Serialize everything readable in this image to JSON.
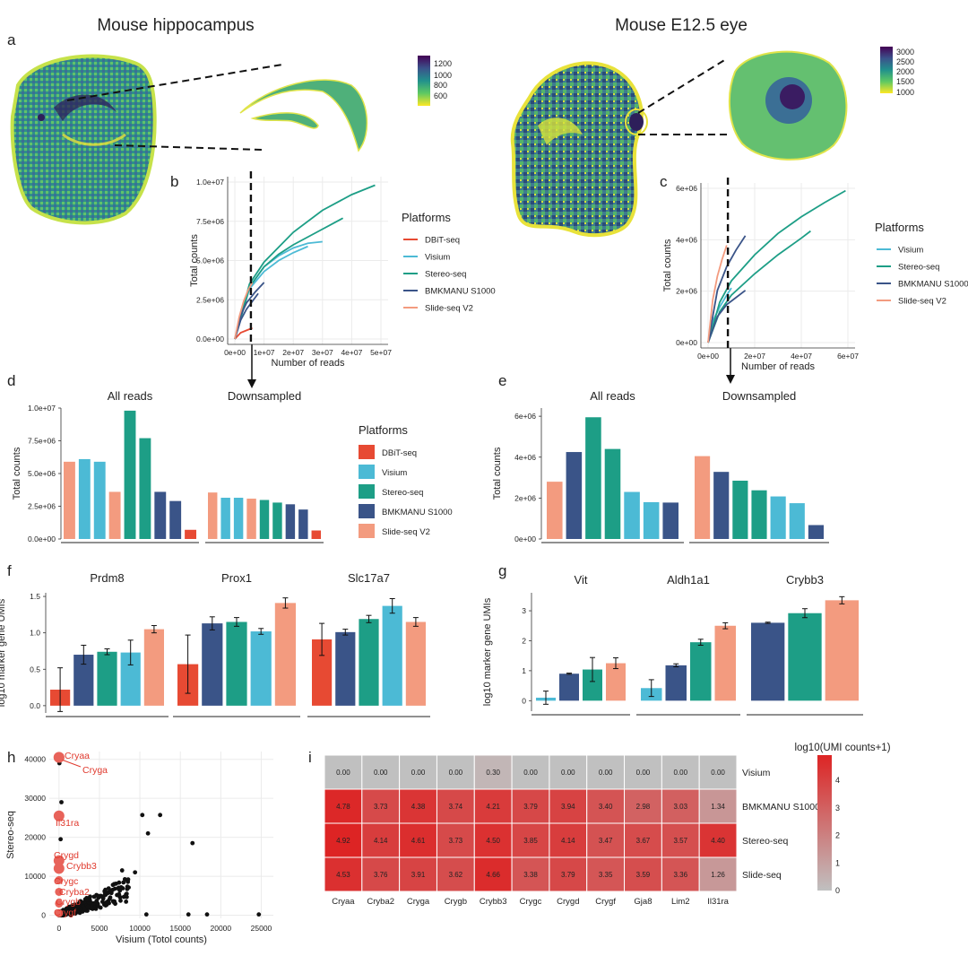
{
  "panel_letters": {
    "a": "a",
    "b": "b",
    "c": "c",
    "d": "d",
    "e": "e",
    "f": "f",
    "g": "g",
    "h": "h",
    "i": "i"
  },
  "section_titles": {
    "hippocampus": "Mouse hippocampus",
    "eye": "Mouse E12.5 eye"
  },
  "colors": {
    "DBiT-seq": "#e74a33",
    "Visium": "#4cbad5",
    "Stereo-seq": "#1d9e86",
    "BMKMANU S1000": "#3a5488",
    "Slide-seq V2": "#f39b7f",
    "grid": "#ebebeb"
  },
  "colorbars": {
    "hippocampus": {
      "ticks": [
        "1200",
        "1000",
        "800",
        "600"
      ]
    },
    "eye": {
      "ticks": [
        "3000",
        "2500",
        "2000",
        "1500",
        "1000"
      ]
    }
  },
  "chart_data": [
    {
      "id": "b",
      "type": "line",
      "xlabel": "Number of reads",
      "ylabel": "Total counts",
      "xlim": [
        0,
        50000000
      ],
      "ylim": [
        0,
        10000000
      ],
      "xticks": [
        "0e+00",
        "1e+07",
        "2e+07",
        "3e+07",
        "4e+07",
        "5e+07"
      ],
      "yticks": [
        "0.0e+00",
        "2.5e+06",
        "5.0e+06",
        "7.5e+06",
        "1.0e+07"
      ],
      "legend_title": "Platforms",
      "legend": [
        "DBiT-seq",
        "Visium",
        "Stereo-seq",
        "BMKMANU S1000",
        "Slide-seq V2"
      ],
      "vline": 5500000,
      "series": [
        {
          "platform": "DBiT-seq",
          "x": [
            0,
            2000000,
            4000000,
            6000000
          ],
          "y": [
            0,
            400000,
            550000,
            700000
          ]
        },
        {
          "platform": "Visium",
          "x": [
            0,
            5000000,
            10000000,
            15000000,
            20000000,
            25000000,
            30000000
          ],
          "y": [
            0,
            3300000,
            4600000,
            5300000,
            5800000,
            6100000,
            6200000
          ]
        },
        {
          "platform": "Visium",
          "x": [
            0,
            5000000,
            10000000,
            15000000,
            20000000,
            25000000
          ],
          "y": [
            0,
            3200000,
            4300000,
            5000000,
            5500000,
            5900000
          ]
        },
        {
          "platform": "Stereo-seq",
          "x": [
            0,
            5000000,
            10000000,
            20000000,
            30000000,
            40000000,
            48000000
          ],
          "y": [
            0,
            3500000,
            4900000,
            6800000,
            8200000,
            9200000,
            9800000
          ]
        },
        {
          "platform": "Stereo-seq",
          "x": [
            0,
            5000000,
            10000000,
            15000000,
            20000000,
            30000000,
            37000000
          ],
          "y": [
            0,
            3300000,
            4600000,
            5400000,
            6000000,
            7000000,
            7700000
          ]
        },
        {
          "platform": "BMKMANU S1000",
          "x": [
            0,
            2000000,
            4000000,
            7000000,
            10000000
          ],
          "y": [
            0,
            1500000,
            2300000,
            3000000,
            3600000
          ]
        },
        {
          "platform": "BMKMANU S1000",
          "x": [
            0,
            2000000,
            4000000,
            6000000,
            8000000
          ],
          "y": [
            0,
            1200000,
            1900000,
            2400000,
            2900000
          ]
        },
        {
          "platform": "Slide-seq V2",
          "x": [
            0,
            1500000,
            3000000,
            4500000,
            6000000
          ],
          "y": [
            0,
            1400000,
            2400000,
            3100000,
            3600000
          ]
        }
      ]
    },
    {
      "id": "c",
      "type": "line",
      "xlabel": "Number of reads",
      "ylabel": "Total counts",
      "xlim": [
        0,
        60000000
      ],
      "ylim": [
        0,
        6500000
      ],
      "xticks": [
        "0e+00",
        "2e+07",
        "4e+07",
        "6e+07"
      ],
      "yticks": [
        "0e+00",
        "2e+06",
        "4e+06",
        "6e+06"
      ],
      "legend_title": "Platforms",
      "legend": [
        "Visium",
        "Stereo-seq",
        "BMKMANU S1000",
        "Slide-seq V2"
      ],
      "vline": 8500000,
      "series": [
        {
          "platform": "Visium",
          "x": [
            0,
            2000000,
            5000000,
            8000000,
            10000000
          ],
          "y": [
            0,
            900000,
            1500000,
            2000000,
            2300000
          ]
        },
        {
          "platform": "Stereo-seq",
          "x": [
            0,
            5000000,
            10000000,
            20000000,
            30000000,
            40000000,
            50000000,
            59000000
          ],
          "y": [
            0,
            1700000,
            2600000,
            3700000,
            4600000,
            5300000,
            5900000,
            6400000
          ]
        },
        {
          "platform": "Stereo-seq",
          "x": [
            0,
            5000000,
            10000000,
            20000000,
            30000000,
            40000000,
            44000000
          ],
          "y": [
            0,
            1300000,
            2000000,
            2900000,
            3700000,
            4400000,
            4700000
          ]
        },
        {
          "platform": "BMKMANU S1000",
          "x": [
            0,
            4000000,
            8000000,
            12000000,
            16000000
          ],
          "y": [
            0,
            2200000,
            3200000,
            3900000,
            4500000
          ]
        },
        {
          "platform": "BMKMANU S1000",
          "x": [
            0,
            4000000,
            8000000,
            12000000,
            16000000
          ],
          "y": [
            0,
            1100000,
            1600000,
            1900000,
            2200000
          ]
        },
        {
          "platform": "Slide-seq V2",
          "x": [
            0,
            2000000,
            4000000,
            6000000,
            8000000
          ],
          "y": [
            0,
            1800000,
            2800000,
            3500000,
            4100000
          ]
        }
      ]
    },
    {
      "id": "d",
      "type": "bar",
      "ylabel": "Total counts",
      "ylim": [
        0,
        10000000
      ],
      "yticks": [
        "0.0e+00",
        "2.5e+06",
        "5.0e+06",
        "7.5e+06",
        "1.0e+07"
      ],
      "legend_title": "Platforms",
      "legend": [
        "DBiT-seq",
        "Visium",
        "Stereo-seq",
        "BMKMANU S1000",
        "Slide-seq V2"
      ],
      "groups": [
        {
          "title": "All reads",
          "bars": [
            {
              "platform": "Slide-seq V2",
              "value": 5900000
            },
            {
              "platform": "Visium",
              "value": 6100000
            },
            {
              "platform": "Visium",
              "value": 5900000
            },
            {
              "platform": "Slide-seq V2",
              "value": 3600000
            },
            {
              "platform": "Stereo-seq",
              "value": 9800000
            },
            {
              "platform": "Stereo-seq",
              "value": 7700000
            },
            {
              "platform": "BMKMANU S1000",
              "value": 3600000
            },
            {
              "platform": "BMKMANU S1000",
              "value": 2900000
            },
            {
              "platform": "DBiT-seq",
              "value": 700000
            }
          ]
        },
        {
          "title": "Downsampled",
          "bars": [
            {
              "platform": "Slide-seq V2",
              "value": 3550000
            },
            {
              "platform": "Visium",
              "value": 3150000
            },
            {
              "platform": "Visium",
              "value": 3150000
            },
            {
              "platform": "Slide-seq V2",
              "value": 3080000
            },
            {
              "platform": "Stereo-seq",
              "value": 2980000
            },
            {
              "platform": "Stereo-seq",
              "value": 2780000
            },
            {
              "platform": "BMKMANU S1000",
              "value": 2650000
            },
            {
              "platform": "BMKMANU S1000",
              "value": 2250000
            },
            {
              "platform": "DBiT-seq",
              "value": 650000
            }
          ]
        }
      ]
    },
    {
      "id": "e",
      "type": "bar",
      "ylabel": "Total counts",
      "ylim": [
        0,
        6400000
      ],
      "yticks": [
        "0e+00",
        "2e+06",
        "4e+06",
        "6e+06"
      ],
      "groups": [
        {
          "title": "All reads",
          "bars": [
            {
              "platform": "Slide-seq V2",
              "value": 2800000
            },
            {
              "platform": "BMKMANU S1000",
              "value": 4250000
            },
            {
              "platform": "Stereo-seq",
              "value": 5950000
            },
            {
              "platform": "Stereo-seq",
              "value": 4400000
            },
            {
              "platform": "Visium",
              "value": 2300000
            },
            {
              "platform": "Visium",
              "value": 1800000
            },
            {
              "platform": "BMKMANU S1000",
              "value": 1780000
            }
          ]
        },
        {
          "title": "Downsampled",
          "bars": [
            {
              "platform": "Slide-seq V2",
              "value": 4050000
            },
            {
              "platform": "BMKMANU S1000",
              "value": 3280000
            },
            {
              "platform": "Stereo-seq",
              "value": 2850000
            },
            {
              "platform": "Stereo-seq",
              "value": 2380000
            },
            {
              "platform": "Visium",
              "value": 2080000
            },
            {
              "platform": "Visium",
              "value": 1750000
            },
            {
              "platform": "BMKMANU S1000",
              "value": 680000
            }
          ]
        }
      ]
    },
    {
      "id": "f",
      "type": "bar",
      "ylabel": "log10 marker gene UMIs",
      "ylim": [
        -0.1,
        1.55
      ],
      "yticks": [
        "0.0",
        "0.5",
        "1.0",
        "1.5"
      ],
      "groups": [
        {
          "title": "Prdm8",
          "bars": [
            {
              "platform": "DBiT-seq",
              "value": 0.22,
              "err": 0.3
            },
            {
              "platform": "BMKMANU S1000",
              "value": 0.7,
              "err": 0.13
            },
            {
              "platform": "Stereo-seq",
              "value": 0.74,
              "err": 0.04
            },
            {
              "platform": "Visium",
              "value": 0.73,
              "err": 0.17
            },
            {
              "platform": "Slide-seq V2",
              "value": 1.05,
              "err": 0.05
            }
          ]
        },
        {
          "title": "Prox1",
          "bars": [
            {
              "platform": "DBiT-seq",
              "value": 0.57,
              "err": 0.4
            },
            {
              "platform": "BMKMANU S1000",
              "value": 1.13,
              "err": 0.09
            },
            {
              "platform": "Stereo-seq",
              "value": 1.15,
              "err": 0.06
            },
            {
              "platform": "Visium",
              "value": 1.02,
              "err": 0.04
            },
            {
              "platform": "Slide-seq V2",
              "value": 1.41,
              "err": 0.07
            }
          ]
        },
        {
          "title": "Slc17a7",
          "bars": [
            {
              "platform": "DBiT-seq",
              "value": 0.91,
              "err": 0.22
            },
            {
              "platform": "BMKMANU S1000",
              "value": 1.01,
              "err": 0.04
            },
            {
              "platform": "Stereo-seq",
              "value": 1.19,
              "err": 0.05
            },
            {
              "platform": "Visium",
              "value": 1.37,
              "err": 0.1
            },
            {
              "platform": "Slide-seq V2",
              "value": 1.15,
              "err": 0.06
            }
          ]
        }
      ]
    },
    {
      "id": "g",
      "type": "bar",
      "ylabel": "log10 marker gene UMIs",
      "ylim": [
        -0.35,
        3.6
      ],
      "yticks": [
        "0",
        "1",
        "2",
        "3"
      ],
      "groups": [
        {
          "title": "Vit",
          "bars": [
            {
              "platform": "Visium",
              "value": 0.1,
              "err": 0.22
            },
            {
              "platform": "BMKMANU S1000",
              "value": 0.9,
              "err": 0.02
            },
            {
              "platform": "Stereo-seq",
              "value": 1.04,
              "err": 0.4
            },
            {
              "platform": "Slide-seq V2",
              "value": 1.25,
              "err": 0.18
            }
          ]
        },
        {
          "title": "Aldh1a1",
          "bars": [
            {
              "platform": "Visium",
              "value": 0.42,
              "err": 0.28
            },
            {
              "platform": "BMKMANU S1000",
              "value": 1.18,
              "err": 0.05
            },
            {
              "platform": "Stereo-seq",
              "value": 1.95,
              "err": 0.1
            },
            {
              "platform": "Slide-seq V2",
              "value": 2.5,
              "err": 0.1
            }
          ]
        },
        {
          "title": "Crybb3",
          "bars": [
            {
              "platform": "BMKMANU S1000",
              "value": 2.6,
              "err": 0.02
            },
            {
              "platform": "Stereo-seq",
              "value": 2.92,
              "err": 0.15
            },
            {
              "platform": "Slide-seq V2",
              "value": 3.35,
              "err": 0.12
            }
          ]
        }
      ]
    },
    {
      "id": "h",
      "type": "scatter",
      "xlabel": "Visium (Totol counts)",
      "ylabel": "Stereo-seq",
      "xlim": [
        -1200,
        26500
      ],
      "ylim": [
        -800,
        42000
      ],
      "xticks": [
        "0",
        "5000",
        "10000",
        "15000",
        "20000",
        "25000"
      ],
      "yticks": [
        "0",
        "10000",
        "20000",
        "30000",
        "40000"
      ],
      "highlight": [
        {
          "label": "Cryaa",
          "x": 0,
          "y": 40500
        },
        {
          "label": "Cryga",
          "x": 0,
          "y": 40500
        },
        {
          "label": "Il31ra",
          "x": 0,
          "y": 25500
        },
        {
          "label": "Crygd",
          "x": 0,
          "y": 14000
        },
        {
          "label": "Crybb3",
          "x": 0,
          "y": 12000
        },
        {
          "label": "Crygc",
          "x": 0,
          "y": 9000
        },
        {
          "label": "Cryba2",
          "x": 0,
          "y": 6000
        },
        {
          "label": "Crygb",
          "x": 0,
          "y": 3000
        },
        {
          "label": "Crygf",
          "x": 0,
          "y": 500
        }
      ],
      "outliers": [
        [
          50,
          39000
        ],
        [
          10300,
          25700
        ],
        [
          11000,
          21000
        ],
        [
          12500,
          25700
        ],
        [
          16500,
          18500
        ],
        [
          10800,
          200
        ],
        [
          16000,
          200
        ],
        [
          18300,
          200
        ],
        [
          24700,
          200
        ],
        [
          7800,
          11500
        ],
        [
          9400,
          11000
        ],
        [
          200,
          19500
        ],
        [
          300,
          29000
        ]
      ]
    },
    {
      "id": "i",
      "type": "heatmap",
      "legend_title": "log10(UMI counts+1)",
      "scale_ticks": [
        "4",
        "3",
        "2",
        "1",
        "0"
      ],
      "zlim": [
        0,
        4.92
      ],
      "columns": [
        "Cryaa",
        "Cryba2",
        "Cryga",
        "Crygb",
        "Crybb3",
        "Crygc",
        "Crygd",
        "Crygf",
        "Gja8",
        "Lim2",
        "Il31ra"
      ],
      "rows": [
        {
          "name": "Visium",
          "values": [
            "0.00",
            "0.00",
            "0.00",
            "0.00",
            "0.30",
            "0.00",
            "0.00",
            "0.00",
            "0.00",
            "0.00",
            "0.00"
          ]
        },
        {
          "name": "BMKMANU S1000",
          "values": [
            "4.78",
            "3.73",
            "4.38",
            "3.74",
            "4.21",
            "3.79",
            "3.94",
            "3.40",
            "2.98",
            "3.03",
            "1.34"
          ]
        },
        {
          "name": "Stereo-seq",
          "values": [
            "4.92",
            "4.14",
            "4.61",
            "3.73",
            "4.50",
            "3.85",
            "4.14",
            "3.47",
            "3.67",
            "3.57",
            "4.40"
          ]
        },
        {
          "name": "Slide-seq",
          "values": [
            "4.53",
            "3.76",
            "3.91",
            "3.62",
            "4.66",
            "3.38",
            "3.79",
            "3.35",
            "3.59",
            "3.36",
            "1.26"
          ]
        }
      ]
    }
  ]
}
